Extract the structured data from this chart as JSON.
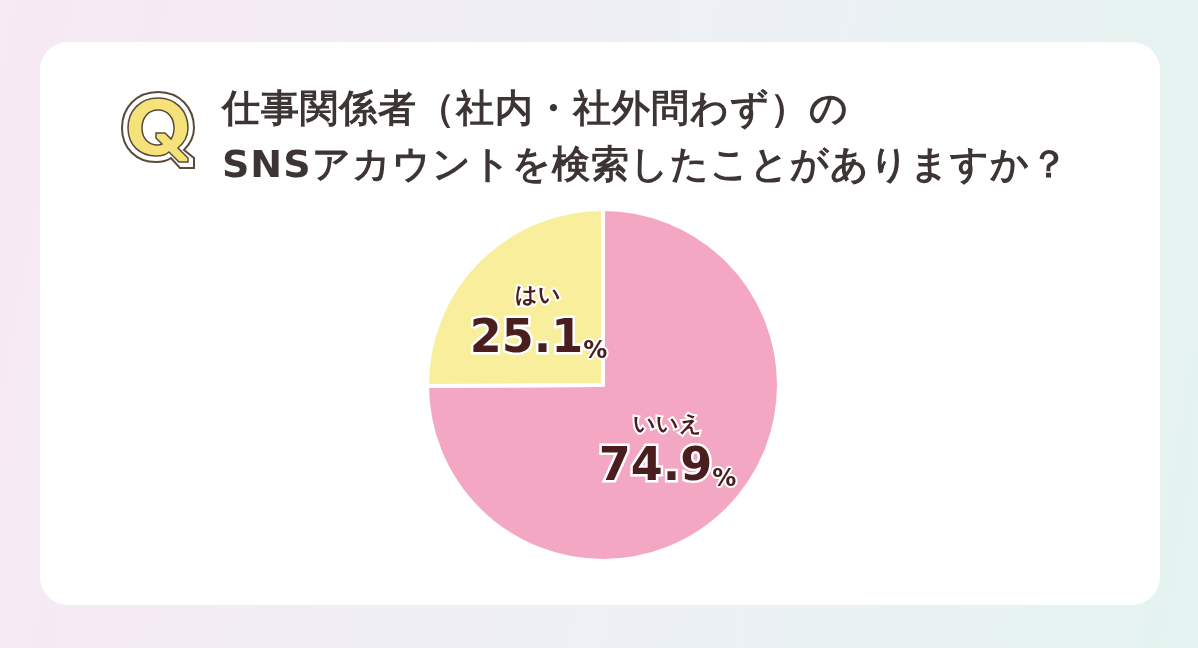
{
  "chart_data": {
    "type": "pie",
    "title": "仕事関係者（社内・社外問わず）の\nSNSアカウントを検索したことがありますか？",
    "categories": [
      "いいえ",
      "はい"
    ],
    "values": [
      74.9,
      25.1
    ],
    "colors": [
      "#f4a7c2",
      "#f8ee9b"
    ],
    "value_labels": [
      "74.9%",
      "25.1%"
    ]
  }
}
